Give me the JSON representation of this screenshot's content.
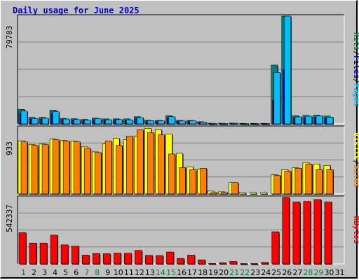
{
  "chart_data": [
    {
      "type": "bar",
      "title": "Daily usage for June 2025",
      "panel": "hits-files-pages",
      "ymax_label": "79703",
      "ylim": [
        0,
        79703
      ],
      "right_labels": [
        {
          "text": "Pages",
          "color": "#00c0ff"
        },
        {
          "text": "Files",
          "color": "#0000c0"
        },
        {
          "text": "Hits",
          "color": "#008040"
        }
      ],
      "right_separator": "/",
      "categories": [
        "1",
        "2",
        "3",
        "4",
        "5",
        "6",
        "7",
        "8",
        "9",
        "10",
        "11",
        "12",
        "13",
        "14",
        "15",
        "16",
        "17",
        "18",
        "19",
        "20",
        "21",
        "22",
        "23",
        "24",
        "25",
        "26",
        "27",
        "28",
        "29",
        "30",
        "31"
      ],
      "weekend_days": [
        "1",
        "7",
        "8",
        "14",
        "15",
        "21",
        "22",
        "28",
        "29"
      ],
      "weekend_color": "#008040",
      "series": [
        {
          "name": "Hits",
          "color": "#008080",
          "values": [
            10700,
            4800,
            4800,
            10100,
            4100,
            3800,
            3300,
            4300,
            3700,
            3700,
            3700,
            5300,
            2700,
            2600,
            6100,
            2600,
            2600,
            1600,
            500,
            500,
            600,
            400,
            400,
            400,
            43500,
            79700,
            6000,
            6200,
            6500,
            5800,
            0
          ]
        },
        {
          "name": "Files",
          "color": "#0000c0",
          "values": [
            8000,
            3600,
            3600,
            7600,
            3100,
            2800,
            2500,
            3200,
            2800,
            2800,
            2800,
            4000,
            2000,
            2000,
            4600,
            1900,
            1900,
            1200,
            300,
            300,
            400,
            300,
            300,
            300,
            17500,
            40000,
            4500,
            4600,
            4900,
            4400,
            0
          ]
        },
        {
          "name": "Pages",
          "color": "#00c0ff",
          "values": [
            9500,
            4000,
            4200,
            9000,
            3600,
            3200,
            2700,
            3900,
            3100,
            3200,
            3000,
            4600,
            2400,
            2300,
            5300,
            2200,
            2300,
            1300,
            400,
            300,
            500,
            200,
            200,
            200,
            38000,
            79700,
            5200,
            5700,
            6000,
            5000,
            0
          ]
        }
      ]
    },
    {
      "type": "bar",
      "panel": "visits-sites",
      "ymax_label": "933",
      "ylim": [
        0,
        933
      ],
      "right_labels": [
        {
          "text": "Sites",
          "color": "#ff8000"
        },
        {
          "text": "Visits",
          "color": "#ffff00"
        }
      ],
      "right_separator": "/",
      "series": [
        {
          "name": "Visits",
          "color": "#ffff00",
          "values": [
            745,
            690,
            700,
            770,
            750,
            740,
            660,
            590,
            700,
            780,
            760,
            810,
            920,
            900,
            840,
            570,
            380,
            345,
            40,
            30,
            160,
            20,
            20,
            20,
            270,
            340,
            370,
            440,
            420,
            400,
            0
          ]
        },
        {
          "name": "Sites",
          "color": "#ff8000",
          "values": [
            730,
            680,
            690,
            760,
            740,
            730,
            640,
            580,
            740,
            680,
            810,
            900,
            860,
            830,
            560,
            370,
            340,
            360,
            20,
            20,
            160,
            0,
            0,
            0,
            260,
            320,
            360,
            420,
            340,
            340,
            0
          ]
        }
      ]
    },
    {
      "type": "bar",
      "panel": "kbytes",
      "ymax_label": "542337",
      "ylim": [
        0,
        542337
      ],
      "right_labels": [
        {
          "text": "KBytes",
          "color": "#ff0000"
        }
      ],
      "right_separator": "",
      "series": [
        {
          "name": "KBytes",
          "color": "#ff0000",
          "values": [
            255000,
            170000,
            170000,
            235000,
            155000,
            145000,
            72000,
            85000,
            83000,
            88000,
            87000,
            110000,
            70000,
            68000,
            97000,
            45000,
            72000,
            33000,
            4000,
            9000,
            20000,
            3000,
            3000,
            12000,
            262000,
            542000,
            505000,
            510000,
            525000,
            505000,
            0
          ]
        }
      ]
    }
  ]
}
